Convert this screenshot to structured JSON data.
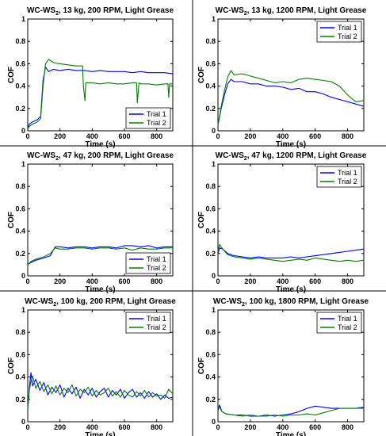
{
  "chart_data": [
    {
      "type": "line",
      "title_main": "WC-WS",
      "title_sub": "2",
      "title_rest": ", 13 kg, 200 RPM, Light Grease",
      "xlabel": "Time (s)",
      "ylabel": "COF",
      "xlim": [
        0,
        900
      ],
      "ylim": [
        0,
        1
      ],
      "xticks": [
        0,
        200,
        400,
        600,
        800
      ],
      "yticks": [
        0,
        0.2,
        0.4,
        0.6,
        0.8,
        1
      ],
      "legend": "bottom-right",
      "series": [
        {
          "name": "Trial 1",
          "color": "#0000ff",
          "x": [
            0,
            10,
            30,
            60,
            80,
            95,
            110,
            130,
            160,
            200,
            250,
            300,
            350,
            400,
            450,
            500,
            550,
            600,
            650,
            700,
            750,
            800,
            850,
            900
          ],
          "y": [
            0.02,
            0.06,
            0.08,
            0.1,
            0.13,
            0.45,
            0.57,
            0.53,
            0.55,
            0.54,
            0.55,
            0.54,
            0.54,
            0.53,
            0.54,
            0.53,
            0.53,
            0.53,
            0.52,
            0.53,
            0.52,
            0.52,
            0.52,
            0.51
          ]
        },
        {
          "name": "Trial 2",
          "color": "#008000",
          "x": [
            0,
            10,
            30,
            60,
            80,
            95,
            110,
            130,
            160,
            200,
            250,
            300,
            340,
            345,
            355,
            360,
            370,
            400,
            450,
            500,
            550,
            600,
            650,
            675,
            680,
            690,
            700,
            750,
            800,
            850,
            870,
            875,
            880,
            900
          ],
          "y": [
            0.02,
            0.04,
            0.06,
            0.08,
            0.11,
            0.4,
            0.6,
            0.64,
            0.61,
            0.6,
            0.59,
            0.58,
            0.58,
            0.4,
            0.27,
            0.43,
            0.43,
            0.43,
            0.42,
            0.43,
            0.42,
            0.42,
            0.43,
            0.43,
            0.25,
            0.43,
            0.42,
            0.42,
            0.41,
            0.42,
            0.42,
            0.3,
            0.42,
            0.42
          ]
        }
      ]
    },
    {
      "type": "line",
      "title_main": "WC-WS",
      "title_sub": "2",
      "title_rest": ", 13 kg, 1200 RPM, Light Grease",
      "xlabel": "Time (s)",
      "ylabel": "COF",
      "xlim": [
        0,
        900
      ],
      "ylim": [
        0,
        1
      ],
      "xticks": [
        0,
        200,
        400,
        600,
        800
      ],
      "yticks": [
        0,
        0.2,
        0.4,
        0.6,
        0.8,
        1
      ],
      "legend": "top-right",
      "series": [
        {
          "name": "Trial 1",
          "color": "#0000ff",
          "x": [
            0,
            20,
            40,
            60,
            80,
            100,
            150,
            200,
            250,
            300,
            350,
            400,
            450,
            500,
            550,
            600,
            650,
            700,
            750,
            800,
            850,
            900
          ],
          "y": [
            0.05,
            0.2,
            0.32,
            0.42,
            0.46,
            0.44,
            0.44,
            0.42,
            0.42,
            0.4,
            0.4,
            0.39,
            0.37,
            0.38,
            0.35,
            0.35,
            0.33,
            0.3,
            0.28,
            0.26,
            0.24,
            0.22
          ]
        },
        {
          "name": "Trial 2",
          "color": "#008000",
          "x": [
            0,
            20,
            40,
            60,
            80,
            100,
            150,
            200,
            250,
            300,
            350,
            400,
            450,
            500,
            550,
            600,
            650,
            700,
            750,
            800,
            850,
            900
          ],
          "y": [
            0.05,
            0.22,
            0.36,
            0.48,
            0.54,
            0.5,
            0.51,
            0.49,
            0.47,
            0.45,
            0.43,
            0.44,
            0.43,
            0.46,
            0.47,
            0.46,
            0.45,
            0.44,
            0.4,
            0.32,
            0.26,
            0.27
          ]
        }
      ]
    },
    {
      "type": "line",
      "title_main": "WC-WS",
      "title_sub": "2",
      "title_rest": ", 47 kg, 200 RPM, Light Grease",
      "xlabel": "Time (s)",
      "ylabel": "COF",
      "xlim": [
        0,
        900
      ],
      "ylim": [
        0,
        1
      ],
      "xticks": [
        0,
        200,
        400,
        600,
        800
      ],
      "yticks": [
        0,
        0.2,
        0.4,
        0.6,
        0.8,
        1
      ],
      "legend": "bottom-right",
      "series": [
        {
          "name": "Trial 1",
          "color": "#0000ff",
          "x": [
            0,
            20,
            50,
            100,
            140,
            170,
            200,
            250,
            300,
            350,
            400,
            450,
            500,
            550,
            600,
            650,
            700,
            750,
            800,
            850,
            900
          ],
          "y": [
            0.1,
            0.12,
            0.14,
            0.16,
            0.18,
            0.26,
            0.26,
            0.25,
            0.26,
            0.26,
            0.25,
            0.26,
            0.26,
            0.25,
            0.27,
            0.27,
            0.26,
            0.27,
            0.25,
            0.26,
            0.26
          ]
        },
        {
          "name": "Trial 2",
          "color": "#008000",
          "x": [
            0,
            20,
            50,
            100,
            140,
            170,
            200,
            250,
            300,
            350,
            400,
            450,
            500,
            550,
            600,
            650,
            700,
            750,
            800,
            850,
            900
          ],
          "y": [
            0.1,
            0.13,
            0.15,
            0.17,
            0.2,
            0.25,
            0.24,
            0.24,
            0.25,
            0.25,
            0.24,
            0.25,
            0.25,
            0.24,
            0.25,
            0.23,
            0.25,
            0.24,
            0.24,
            0.25,
            0.25
          ]
        }
      ]
    },
    {
      "type": "line",
      "title_main": "WC-WS",
      "title_sub": "2",
      "title_rest": ", 47 kg, 1200 RPM, Light Grease",
      "xlabel": "Time (s)",
      "ylabel": "COF",
      "xlim": [
        0,
        900
      ],
      "ylim": [
        0,
        1
      ],
      "xticks": [
        0,
        200,
        400,
        600,
        800
      ],
      "yticks": [
        0,
        0.2,
        0.4,
        0.6,
        0.8,
        1
      ],
      "legend": "top-right",
      "series": [
        {
          "name": "Trial 1",
          "color": "#0000ff",
          "x": [
            0,
            10,
            30,
            60,
            100,
            150,
            200,
            250,
            300,
            350,
            400,
            450,
            500,
            550,
            600,
            650,
            700,
            750,
            800,
            850,
            900
          ],
          "y": [
            0.2,
            0.25,
            0.24,
            0.2,
            0.18,
            0.17,
            0.16,
            0.17,
            0.16,
            0.16,
            0.16,
            0.17,
            0.16,
            0.17,
            0.18,
            0.19,
            0.2,
            0.21,
            0.22,
            0.23,
            0.24
          ]
        },
        {
          "name": "Trial 2",
          "color": "#008000",
          "x": [
            0,
            10,
            30,
            60,
            100,
            150,
            200,
            250,
            300,
            350,
            400,
            450,
            500,
            550,
            600,
            650,
            700,
            750,
            800,
            850,
            900
          ],
          "y": [
            0.22,
            0.28,
            0.24,
            0.19,
            0.17,
            0.16,
            0.15,
            0.16,
            0.15,
            0.14,
            0.13,
            0.14,
            0.15,
            0.14,
            0.16,
            0.15,
            0.14,
            0.13,
            0.14,
            0.13,
            0.14
          ]
        }
      ]
    },
    {
      "type": "line",
      "title_main": "WC-WS",
      "title_sub": "2",
      "title_rest": ", 100 kg, 200 RPM, Light Grease",
      "xlabel": "Time (s)",
      "ylabel": "COF",
      "xlim": [
        0,
        900
      ],
      "ylim": [
        0,
        1
      ],
      "xticks": [
        0,
        200,
        400,
        600,
        800
      ],
      "yticks": [
        0,
        0.2,
        0.4,
        0.6,
        0.8,
        1
      ],
      "legend": "top-right",
      "series": [
        {
          "name": "Trial 1",
          "color": "#0000ff",
          "x": [
            0,
            10,
            20,
            30,
            50,
            75,
            100,
            125,
            150,
            175,
            200,
            225,
            250,
            275,
            300,
            325,
            350,
            375,
            400,
            425,
            450,
            475,
            500,
            525,
            550,
            575,
            600,
            625,
            650,
            675,
            700,
            725,
            750,
            775,
            800,
            825,
            850,
            875,
            900
          ],
          "y": [
            0.1,
            0.3,
            0.44,
            0.32,
            0.38,
            0.28,
            0.35,
            0.24,
            0.31,
            0.26,
            0.33,
            0.22,
            0.3,
            0.25,
            0.31,
            0.21,
            0.29,
            0.24,
            0.3,
            0.22,
            0.27,
            0.3,
            0.22,
            0.28,
            0.24,
            0.29,
            0.21,
            0.26,
            0.29,
            0.22,
            0.26,
            0.21,
            0.27,
            0.22,
            0.25,
            0.2,
            0.24,
            0.21,
            0.22
          ]
        },
        {
          "name": "Trial 2",
          "color": "#008000",
          "x": [
            0,
            10,
            20,
            30,
            50,
            75,
            100,
            125,
            150,
            175,
            200,
            225,
            250,
            275,
            300,
            325,
            350,
            375,
            400,
            425,
            450,
            475,
            500,
            525,
            550,
            575,
            600,
            625,
            650,
            675,
            700,
            725,
            750,
            775,
            800,
            825,
            850,
            875,
            900
          ],
          "y": [
            0.12,
            0.28,
            0.36,
            0.41,
            0.3,
            0.36,
            0.27,
            0.33,
            0.25,
            0.32,
            0.24,
            0.3,
            0.26,
            0.33,
            0.23,
            0.29,
            0.26,
            0.31,
            0.23,
            0.28,
            0.24,
            0.26,
            0.3,
            0.23,
            0.27,
            0.22,
            0.28,
            0.24,
            0.22,
            0.27,
            0.23,
            0.28,
            0.22,
            0.26,
            0.23,
            0.24,
            0.21,
            0.29,
            0.25
          ]
        }
      ]
    },
    {
      "type": "line",
      "title_main": "WC-WS",
      "title_sub": "2",
      "title_rest": ", 100 kg, 1800 RPM, Light Grease",
      "xlabel": "Time (s)",
      "ylabel": "COF",
      "xlim": [
        0,
        900
      ],
      "ylim": [
        0,
        1
      ],
      "xticks": [
        0,
        200,
        400,
        600,
        800
      ],
      "yticks": [
        0,
        0.2,
        0.4,
        0.6,
        0.8,
        1
      ],
      "legend": "top-right",
      "series": [
        {
          "name": "Trial 1",
          "color": "#0000ff",
          "x": [
            0,
            10,
            25,
            50,
            100,
            150,
            200,
            250,
            300,
            350,
            400,
            450,
            500,
            550,
            600,
            650,
            700,
            750,
            800,
            850,
            900
          ],
          "y": [
            0.1,
            0.15,
            0.09,
            0.07,
            0.06,
            0.06,
            0.05,
            0.05,
            0.06,
            0.05,
            0.06,
            0.07,
            0.09,
            0.12,
            0.14,
            0.13,
            0.12,
            0.12,
            0.12,
            0.12,
            0.13
          ]
        },
        {
          "name": "Trial 2",
          "color": "#008000",
          "x": [
            0,
            10,
            25,
            50,
            100,
            150,
            200,
            250,
            300,
            350,
            400,
            450,
            500,
            550,
            600,
            650,
            700,
            750,
            800,
            850,
            900
          ],
          "y": [
            0.12,
            0.13,
            0.09,
            0.07,
            0.06,
            0.05,
            0.06,
            0.05,
            0.05,
            0.06,
            0.05,
            0.06,
            0.06,
            0.07,
            0.06,
            0.08,
            0.1,
            0.12,
            0.12,
            0.12,
            0.12
          ]
        }
      ]
    }
  ]
}
